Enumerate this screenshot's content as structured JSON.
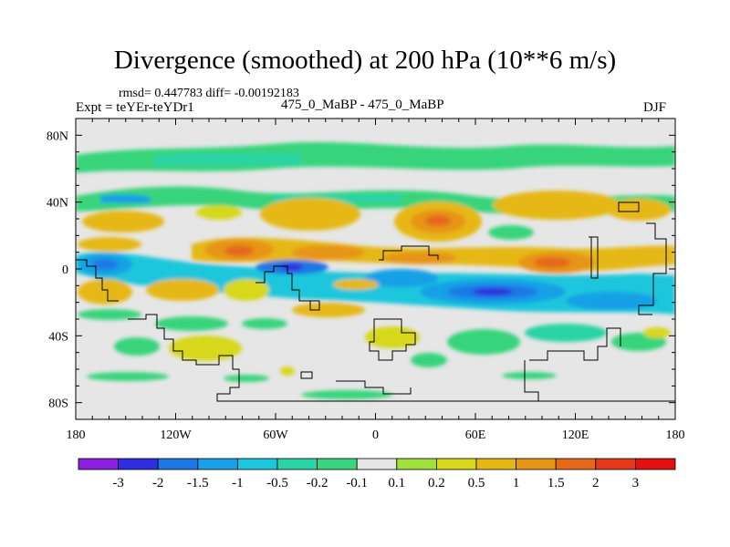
{
  "chart_data": {
    "type": "contour-map",
    "title": "Divergence (smoothed) at 200 hPa (10**6 m/s)",
    "stats_text": "rmsd= 0.447783 diff= -0.00192183",
    "left_label": "Expt = teYEr-teYDr1",
    "center_label": "475_0_MaBP - 475_0_MaBP",
    "right_label": "DJF",
    "xlim": [
      -180,
      180
    ],
    "ylim": [
      -90,
      90
    ],
    "x_ticks": [
      {
        "value": -180,
        "label": "180"
      },
      {
        "value": -120,
        "label": "120W"
      },
      {
        "value": -60,
        "label": "60W"
      },
      {
        "value": 0,
        "label": "0"
      },
      {
        "value": 60,
        "label": "60E"
      },
      {
        "value": 120,
        "label": "120E"
      },
      {
        "value": 180,
        "label": "180"
      }
    ],
    "y_ticks": [
      {
        "value": 80,
        "label": "80N"
      },
      {
        "value": 40,
        "label": "40N"
      },
      {
        "value": 0,
        "label": "0"
      },
      {
        "value": -40,
        "label": "40S"
      },
      {
        "value": -80,
        "label": "80S"
      }
    ],
    "colorbar": {
      "colors": [
        "#8a1fe0",
        "#2f2fdf",
        "#1e78e6",
        "#19a0e6",
        "#1cc6dc",
        "#2ad4a4",
        "#39d47b",
        "#e6e6e6",
        "#9fe03a",
        "#d7d71b",
        "#e6b814",
        "#e69517",
        "#e6681a",
        "#e6391b",
        "#e60f0f"
      ],
      "labels": [
        "-3",
        "-2",
        "-1.5",
        "-1",
        "-0.5",
        "-0.2",
        "-0.1",
        "0.1",
        "0.2",
        "0.5",
        "1",
        "1.5",
        "2",
        "3"
      ]
    },
    "features": [
      {
        "name": "band-north-60",
        "lon": [
          -180,
          180
        ],
        "lat": 65,
        "sign": "neg",
        "level": 0
      },
      {
        "name": "jet-band-30n",
        "lon": [
          -180,
          180
        ],
        "lat": 30,
        "sign": "neg",
        "level": 0
      },
      {
        "name": "equatorial-max",
        "lon": [
          -140,
          140
        ],
        "lat": 10,
        "sign": "pos",
        "level": 1
      },
      {
        "name": "equatorial-min",
        "lon": [
          -160,
          170
        ],
        "lat": -5,
        "sign": "neg",
        "level": 2
      },
      {
        "name": "southern-band",
        "lon": [
          -180,
          180
        ],
        "lat": -40,
        "sign": "mix",
        "level": 0
      }
    ]
  }
}
